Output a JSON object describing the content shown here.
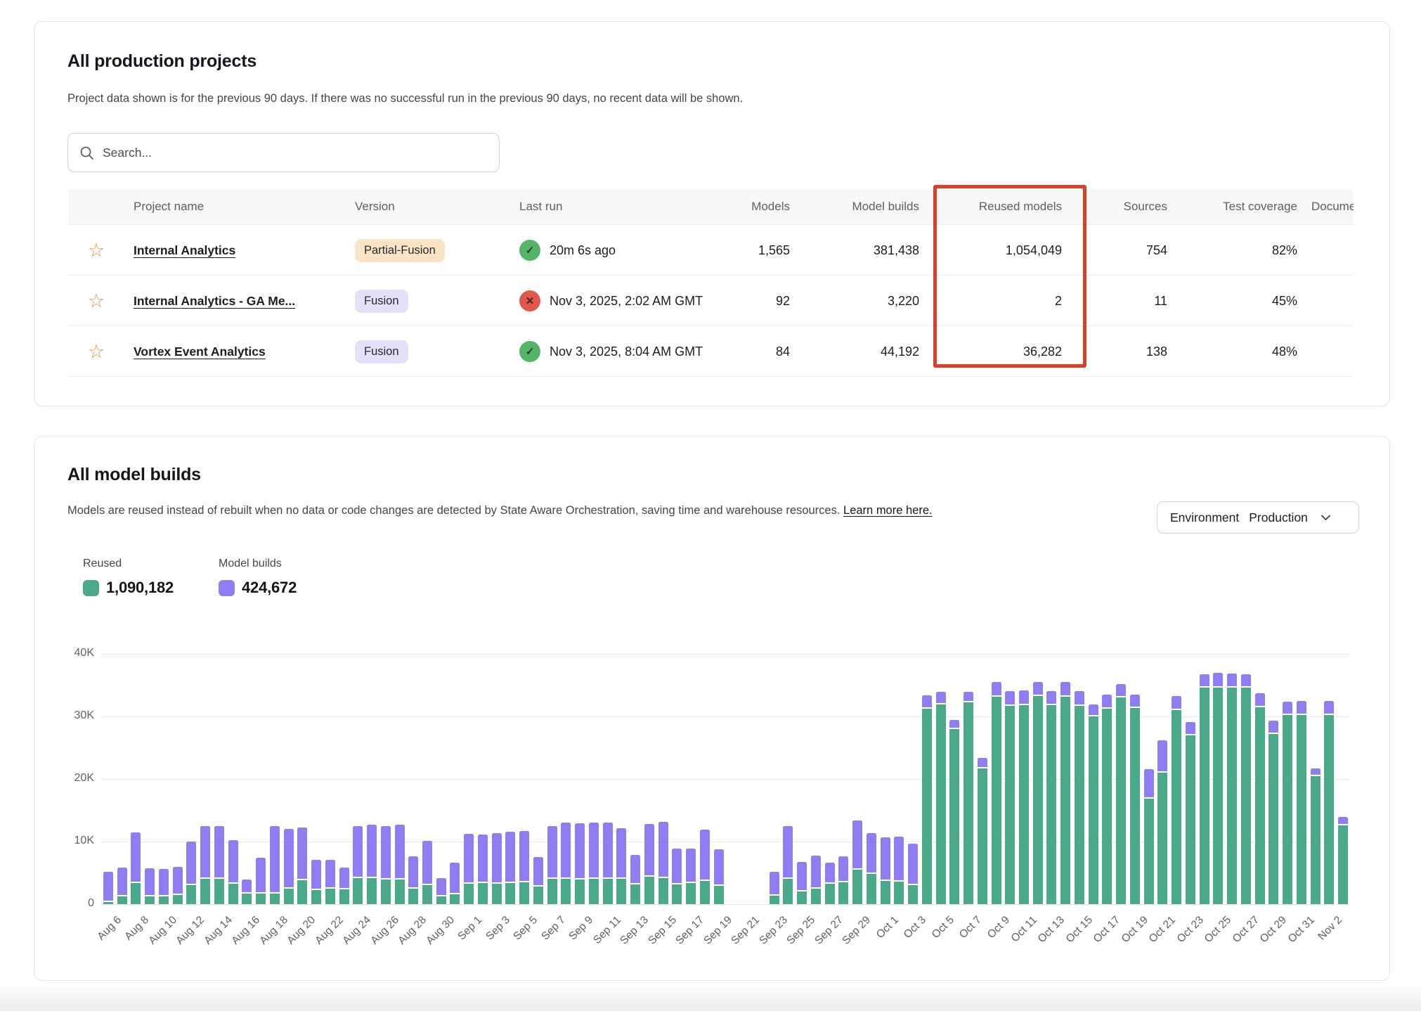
{
  "projects_card": {
    "title": "All production projects",
    "subtitle": "Project data shown is for the previous 90 days. If there was no successful run in the previous 90 days, no recent data will be shown.",
    "search": {
      "placeholder": "Search..."
    },
    "annotation_color": "#d8402c",
    "table": {
      "columns": [
        "Project name",
        "Version",
        "Last run",
        "Models",
        "Model builds",
        "Reused models",
        "Sources",
        "Test coverage",
        "Documentation"
      ],
      "rows": [
        {
          "name": "Internal Analytics",
          "version": "Partial-Fusion",
          "version_style": "partial",
          "last_run": "20m 6s ago",
          "last_run_status": "success",
          "models": "1,565",
          "model_builds": "381,438",
          "reused_models": "1,054,049",
          "sources": "754",
          "test_coverage": "82%"
        },
        {
          "name": "Internal Analytics - GA Me...",
          "version": "Fusion",
          "version_style": "fusion",
          "last_run": "Nov 3, 2025, 2:02 AM GMT",
          "last_run_status": "error",
          "models": "92",
          "model_builds": "3,220",
          "reused_models": "2",
          "sources": "11",
          "test_coverage": "45%"
        },
        {
          "name": "Vortex Event Analytics",
          "version": "Fusion",
          "version_style": "fusion",
          "last_run": "Nov 3, 2025, 8:04 AM GMT",
          "last_run_status": "success",
          "models": "84",
          "model_builds": "44,192",
          "reused_models": "36,282",
          "sources": "138",
          "test_coverage": "48%"
        }
      ]
    }
  },
  "builds_card": {
    "title": "All model builds",
    "subtitle": "Models are reused instead of rebuilt when no data or code changes are detected by State Aware Orchestration, saving time and warehouse resources.",
    "learn_more": "Learn more here.",
    "environment": {
      "label": "Environment",
      "value": "Production"
    },
    "legend": [
      {
        "label": "Reused",
        "value": "1,090,182",
        "color": "#4aa88b"
      },
      {
        "label": "Model builds",
        "value": "424,672",
        "color": "#8f7df2"
      }
    ]
  },
  "chart_data": {
    "type": "bar",
    "stacked": true,
    "title": "All model builds",
    "xlabel": "",
    "ylabel": "",
    "ylim": [
      0,
      40000
    ],
    "grid": true,
    "legend_position": "top-left",
    "x_tick_every": 2,
    "yticks": [
      {
        "v": 0,
        "label": "0"
      },
      {
        "v": 10000,
        "label": "10K"
      },
      {
        "v": 20000,
        "label": "20K"
      },
      {
        "v": 30000,
        "label": "30K"
      },
      {
        "v": 40000,
        "label": "40K"
      }
    ],
    "x": [
      "Aug 6",
      "Aug 7",
      "Aug 8",
      "Aug 9",
      "Aug 10",
      "Aug 11",
      "Aug 12",
      "Aug 13",
      "Aug 14",
      "Aug 15",
      "Aug 16",
      "Aug 17",
      "Aug 18",
      "Aug 19",
      "Aug 20",
      "Aug 21",
      "Aug 22",
      "Aug 23",
      "Aug 24",
      "Aug 25",
      "Aug 26",
      "Aug 27",
      "Aug 28",
      "Aug 29",
      "Aug 30",
      "Aug 31",
      "Sep 1",
      "Sep 2",
      "Sep 3",
      "Sep 4",
      "Sep 5",
      "Sep 6",
      "Sep 7",
      "Sep 8",
      "Sep 9",
      "Sep 10",
      "Sep 11",
      "Sep 12",
      "Sep 13",
      "Sep 14",
      "Sep 15",
      "Sep 16",
      "Sep 17",
      "Sep 18",
      "Sep 19",
      "Sep 20",
      "Sep 21",
      "Sep 22",
      "Sep 23",
      "Sep 24",
      "Sep 25",
      "Sep 26",
      "Sep 27",
      "Sep 28",
      "Sep 29",
      "Sep 30",
      "Oct 1",
      "Oct 2",
      "Oct 3",
      "Oct 4",
      "Oct 5",
      "Oct 6",
      "Oct 7",
      "Oct 8",
      "Oct 9",
      "Oct 10",
      "Oct 11",
      "Oct 12",
      "Oct 13",
      "Oct 14",
      "Oct 15",
      "Oct 16",
      "Oct 17",
      "Oct 18",
      "Oct 19",
      "Oct 20",
      "Oct 21",
      "Oct 22",
      "Oct 23",
      "Oct 24",
      "Oct 25",
      "Oct 26",
      "Oct 27",
      "Oct 28",
      "Oct 29",
      "Oct 30",
      "Oct 31",
      "Nov 1",
      "Nov 2",
      "Nov 3"
    ],
    "series": [
      {
        "name": "Reused",
        "color": "#4aa88b",
        "values": [
          300,
          1200,
          3400,
          1200,
          1200,
          1500,
          3000,
          4000,
          4000,
          3300,
          1700,
          1700,
          1700,
          2500,
          3800,
          2300,
          2500,
          2400,
          4200,
          4200,
          3900,
          3900,
          2500,
          3000,
          1200,
          1600,
          3300,
          3400,
          3300,
          3400,
          3500,
          2800,
          4000,
          4000,
          3900,
          4000,
          4000,
          4000,
          3100,
          4400,
          4200,
          3200,
          3400,
          3700,
          2900,
          0,
          0,
          0,
          1400,
          4000,
          2000,
          2500,
          3300,
          3500,
          5500,
          4800,
          3700,
          3600,
          3000,
          31200,
          31900,
          28000,
          32300,
          21700,
          33100,
          31700,
          31800,
          33300,
          31800,
          33200,
          31700,
          30000,
          31200,
          33000,
          31300,
          16800,
          21000,
          31000,
          27000,
          34600,
          34600,
          34600,
          34600,
          31500,
          27200,
          30200,
          30200,
          20400,
          30200,
          12600
        ]
      },
      {
        "name": "Model builds",
        "color": "#8f7df2",
        "values": [
          4700,
          4400,
          7800,
          4300,
          4200,
          4200,
          6800,
          8200,
          8300,
          6700,
          2000,
          5500,
          10600,
          9300,
          8200,
          4500,
          4400,
          3200,
          8000,
          8300,
          8300,
          8600,
          4900,
          6900,
          2700,
          4800,
          7700,
          7500,
          7800,
          7900,
          8000,
          4500,
          8200,
          8800,
          8800,
          8800,
          8800,
          7900,
          4500,
          8200,
          8700,
          5400,
          5300,
          8000,
          5600,
          0,
          0,
          0,
          3600,
          8200,
          4500,
          5000,
          3100,
          3900,
          7700,
          6300,
          6700,
          7000,
          6400,
          1900,
          1800,
          1200,
          1400,
          1500,
          2200,
          2100,
          2100,
          2000,
          2000,
          2100,
          2100,
          1700,
          2100,
          1900,
          2000,
          4500,
          4900,
          2000,
          1900,
          1900,
          2100,
          2000,
          1900,
          2000,
          1900,
          1900,
          2000,
          1100,
          2000,
          1100
        ]
      }
    ]
  }
}
